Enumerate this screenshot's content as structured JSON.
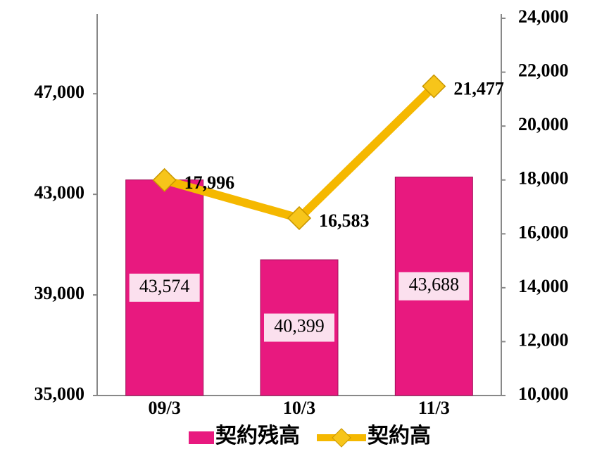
{
  "chart_data": {
    "type": "bar",
    "categories": [
      "09/3",
      "10/3",
      "11/3"
    ],
    "series": [
      {
        "name": "契約残高",
        "type": "bar",
        "color": "#e8197f",
        "values": [
          43574,
          40399,
          43688
        ],
        "value_labels": [
          "43,574",
          "40,399",
          "43,688"
        ]
      },
      {
        "name": "契約高",
        "type": "line",
        "axis": "y2",
        "color": "#f5b800",
        "values": [
          17996,
          16583,
          21477
        ],
        "value_labels": [
          "17,996",
          "16,583",
          "21,477"
        ]
      }
    ],
    "ylim": [
      35000,
      50000
    ],
    "yticks": [
      {
        "value": 35000,
        "label": "35,000"
      },
      {
        "value": 39000,
        "label": "39,000"
      },
      {
        "value": 43000,
        "label": "43,000"
      },
      {
        "value": 47000,
        "label": "47,000"
      }
    ],
    "y2lim": [
      10000,
      24000
    ],
    "y2ticks": [
      {
        "value": 10000,
        "label": "10,000"
      },
      {
        "value": 12000,
        "label": "12,000"
      },
      {
        "value": 14000,
        "label": "14,000"
      },
      {
        "value": 16000,
        "label": "16,000"
      },
      {
        "value": 18000,
        "label": "18,000"
      },
      {
        "value": 20000,
        "label": "20,000"
      },
      {
        "value": 22000,
        "label": "22,000"
      },
      {
        "value": 24000,
        "label": "24,000"
      }
    ],
    "legend": "bottom"
  }
}
